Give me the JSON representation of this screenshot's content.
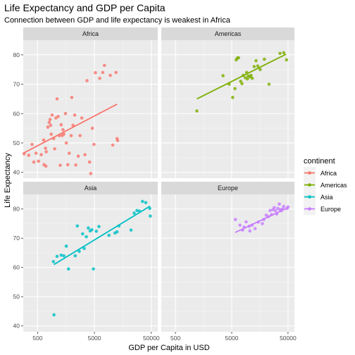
{
  "chart_data": {
    "type": "scatter",
    "title": "Life Expectancy and GDP per Capita",
    "subtitle": "Connection between GDP and life expectancy is weakest in Africa",
    "xlabel": "GDP per Capita in USD",
    "ylabel": "Life Expectancy",
    "x_scale": "log10",
    "xlim": [
      280,
      65000
    ],
    "ylim": [
      38,
      85
    ],
    "x_ticks": [
      500,
      5000,
      50000
    ],
    "x_tick_labels": [
      "500",
      "5000",
      "50000"
    ],
    "y_ticks": [
      40,
      50,
      60,
      70,
      80
    ],
    "y_tick_labels": [
      "40",
      "50",
      "60",
      "70",
      "80"
    ],
    "grid": true,
    "legend": {
      "title": "continent",
      "placement": "right"
    },
    "series": [
      {
        "name": "Africa",
        "facet": "Africa",
        "color": "#F8766D",
        "fit": {
          "x": [
            280,
            12500
          ],
          "y": [
            46.5,
            63.2
          ]
        },
        "points": [
          [
            290,
            46.3
          ],
          [
            350,
            45.8
          ],
          [
            400,
            49.5
          ],
          [
            430,
            43.5
          ],
          [
            470,
            46.5
          ],
          [
            520,
            43.8
          ],
          [
            580,
            46.0
          ],
          [
            640,
            51.0
          ],
          [
            650,
            42.6
          ],
          [
            690,
            48.2
          ],
          [
            700,
            42.1
          ],
          [
            710,
            47.0
          ],
          [
            760,
            55.4
          ],
          [
            800,
            57.0
          ],
          [
            830,
            58.0
          ],
          [
            850,
            56.0
          ],
          [
            870,
            53.0
          ],
          [
            900,
            59.5
          ],
          [
            960,
            51.5
          ],
          [
            1000,
            48.0
          ],
          [
            1050,
            58.5
          ],
          [
            1100,
            65.0
          ],
          [
            1150,
            59.0
          ],
          [
            1200,
            52.5
          ],
          [
            1250,
            42.4
          ],
          [
            1300,
            56.2
          ],
          [
            1350,
            52.5
          ],
          [
            1400,
            54.5
          ],
          [
            1450,
            53.0
          ],
          [
            1550,
            60.0
          ],
          [
            1600,
            50.0
          ],
          [
            1700,
            42.6
          ],
          [
            1800,
            46.5
          ],
          [
            1950,
            52.5
          ],
          [
            2000,
            65.5
          ],
          [
            2100,
            56.0
          ],
          [
            2250,
            59.5
          ],
          [
            2350,
            42.5
          ],
          [
            2600,
            45.5
          ],
          [
            2800,
            52.5
          ],
          [
            3000,
            58.5
          ],
          [
            3400,
            46.0
          ],
          [
            3700,
            71.2
          ],
          [
            4100,
            43.5
          ],
          [
            4300,
            39.6
          ],
          [
            4600,
            55.0
          ],
          [
            4900,
            49.5
          ],
          [
            5200,
            73.9
          ],
          [
            6200,
            72.0
          ],
          [
            7000,
            74.0
          ],
          [
            7500,
            76.4
          ],
          [
            9500,
            73.0
          ],
          [
            10500,
            49.3
          ],
          [
            12500,
            51.5
          ],
          [
            12800,
            50.8
          ],
          [
            12000,
            74.0
          ]
        ]
      },
      {
        "name": "Americas",
        "facet": "Americas",
        "color": "#7CAE00",
        "fit": {
          "x": [
            1200,
            46000
          ],
          "y": [
            65.0,
            80.2
          ]
        },
        "points": [
          [
            1200,
            60.9
          ],
          [
            3500,
            72.9
          ],
          [
            4500,
            70.0
          ],
          [
            5200,
            65.5
          ],
          [
            5700,
            68.5
          ],
          [
            6000,
            78.3
          ],
          [
            6300,
            78.9
          ],
          [
            6600,
            79.0
          ],
          [
            7200,
            71.0
          ],
          [
            7600,
            70.2
          ],
          [
            8000,
            73.0
          ],
          [
            8700,
            72.2
          ],
          [
            9200,
            74.0
          ],
          [
            9500,
            71.8
          ],
          [
            9800,
            72.8
          ],
          [
            10500,
            72.5
          ],
          [
            11000,
            73.0
          ],
          [
            11600,
            72.0
          ],
          [
            12500,
            76.0
          ],
          [
            13500,
            78.0
          ],
          [
            14500,
            76.2
          ],
          [
            16000,
            75.0
          ],
          [
            19000,
            78.5
          ],
          [
            23000,
            70.0
          ],
          [
            36000,
            80.5
          ],
          [
            42000,
            80.7
          ],
          [
            47000,
            78.3
          ]
        ]
      },
      {
        "name": "Asia",
        "facet": "Asia",
        "color": "#00BFC4",
        "fit": {
          "x": [
            970,
            47500
          ],
          "y": [
            61.0,
            81.0
          ]
        },
        "points": [
          [
            950,
            62.0
          ],
          [
            970,
            43.8
          ],
          [
            1100,
            63.8
          ],
          [
            1300,
            64.2
          ],
          [
            1450,
            64.0
          ],
          [
            1600,
            67.3
          ],
          [
            1750,
            59.5
          ],
          [
            2300,
            64.0
          ],
          [
            2500,
            74.2
          ],
          [
            2700,
            65.5
          ],
          [
            3100,
            71.5
          ],
          [
            3300,
            66.5
          ],
          [
            3600,
            70.5
          ],
          [
            3900,
            73.5
          ],
          [
            4200,
            72.5
          ],
          [
            4500,
            72.9
          ],
          [
            4800,
            59.5
          ],
          [
            5400,
            72.4
          ],
          [
            6000,
            74.0
          ],
          [
            9000,
            71.0
          ],
          [
            11500,
            71.8
          ],
          [
            12500,
            72.2
          ],
          [
            13500,
            74.2
          ],
          [
            22000,
            72.8
          ],
          [
            25000,
            78.6
          ],
          [
            28000,
            79.5
          ],
          [
            31000,
            79.3
          ],
          [
            35000,
            82.6
          ],
          [
            40000,
            82.2
          ],
          [
            47000,
            80.2
          ],
          [
            48000,
            77.6
          ]
        ]
      },
      {
        "name": "Europe",
        "facet": "Europe",
        "color": "#C77CFF",
        "fit": {
          "x": [
            5800,
            50000
          ],
          "y": [
            72.0,
            80.5
          ]
        },
        "points": [
          [
            5800,
            76.4
          ],
          [
            7000,
            74.5
          ],
          [
            7800,
            72.8
          ],
          [
            8300,
            73.8
          ],
          [
            9000,
            75.6
          ],
          [
            10200,
            74.1
          ],
          [
            10500,
            72.5
          ],
          [
            11500,
            74.5
          ],
          [
            13000,
            73.3
          ],
          [
            14800,
            75.5
          ],
          [
            17500,
            75.0
          ],
          [
            18500,
            76.4
          ],
          [
            20500,
            77.9
          ],
          [
            22500,
            77.4
          ],
          [
            24000,
            79.5
          ],
          [
            25500,
            78.1
          ],
          [
            27000,
            79.8
          ],
          [
            28500,
            80.5
          ],
          [
            30000,
            79.4
          ],
          [
            31500,
            78.3
          ],
          [
            33000,
            80.2
          ],
          [
            35000,
            81.7
          ],
          [
            36500,
            79.8
          ],
          [
            38000,
            79.4
          ],
          [
            40000,
            80.0
          ],
          [
            42000,
            80.9
          ],
          [
            48000,
            80.2
          ],
          [
            50000,
            80.7
          ]
        ]
      }
    ]
  }
}
